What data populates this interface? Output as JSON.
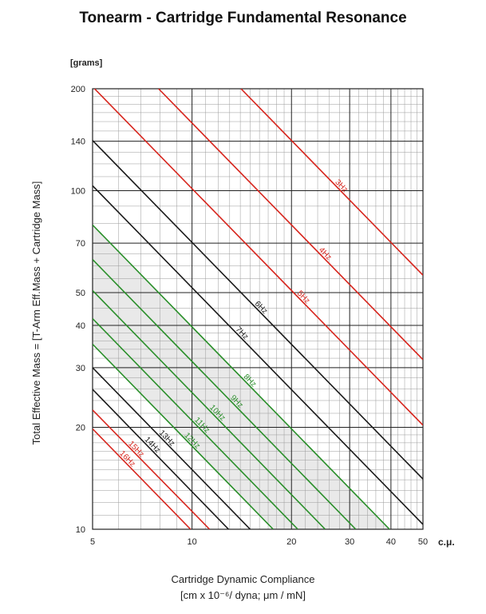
{
  "chart_data": {
    "type": "line",
    "title": "Tonearm - Cartridge Fundamental Resonance",
    "xlabel": "Cartridge Dynamic Compliance",
    "xlabel_units": "[cm x 10⁻⁶/ dyna; μm / mN]",
    "x_unit_label": "c.μ.",
    "ylabel": "Total Effective Mass = [T-Arm Eff.Mass + Cartridge Mass]",
    "y_unit_label": "[grams]",
    "x_scale": "log",
    "y_scale": "log",
    "xlim": [
      5,
      50
    ],
    "ylim": [
      10,
      200
    ],
    "x_ticks": [
      5,
      10,
      20,
      30,
      40,
      50
    ],
    "y_ticks": [
      10,
      20,
      30,
      40,
      50,
      70,
      100,
      140,
      200
    ],
    "grid": true,
    "recommended_range_shading": "light gray band between 8Hz and 12Hz lines",
    "series": [
      {
        "name": "3Hz",
        "color": "#d7261e",
        "points": [
          [
            14.07,
            200
          ],
          [
            50,
            56.3
          ]
        ]
      },
      {
        "name": "4Hz",
        "color": "#d7261e",
        "points": [
          [
            7.92,
            200
          ],
          [
            50,
            31.7
          ]
        ]
      },
      {
        "name": "5Hz",
        "color": "#d7261e",
        "points": [
          [
            5.07,
            200
          ],
          [
            50,
            20.3
          ]
        ]
      },
      {
        "name": "6Hz",
        "color": "#1a1a1a",
        "points": [
          [
            5,
            140.7
          ],
          [
            50,
            14.07
          ]
        ]
      },
      {
        "name": "7Hz",
        "color": "#1a1a1a",
        "points": [
          [
            5,
            103.4
          ],
          [
            50,
            10.34
          ]
        ]
      },
      {
        "name": "8Hz",
        "color": "#2a8f2a",
        "points": [
          [
            5,
            79.2
          ],
          [
            39.6,
            10
          ]
        ]
      },
      {
        "name": "9Hz",
        "color": "#2a8f2a",
        "points": [
          [
            5,
            62.6
          ],
          [
            31.3,
            10
          ]
        ]
      },
      {
        "name": "10Hz",
        "color": "#2a8f2a",
        "points": [
          [
            5,
            50.7
          ],
          [
            25.3,
            10
          ]
        ]
      },
      {
        "name": "11Hz",
        "color": "#2a8f2a",
        "points": [
          [
            5,
            41.9
          ],
          [
            20.9,
            10
          ]
        ]
      },
      {
        "name": "12Hz",
        "color": "#2a8f2a",
        "points": [
          [
            5,
            35.2
          ],
          [
            17.6,
            10
          ]
        ]
      },
      {
        "name": "13Hz",
        "color": "#1a1a1a",
        "points": [
          [
            5,
            30.0
          ],
          [
            15.0,
            10
          ]
        ]
      },
      {
        "name": "14Hz",
        "color": "#1a1a1a",
        "points": [
          [
            5,
            25.9
          ],
          [
            12.9,
            10
          ]
        ]
      },
      {
        "name": "15Hz",
        "color": "#d7261e",
        "points": [
          [
            5,
            22.5
          ],
          [
            11.3,
            10
          ]
        ]
      },
      {
        "name": "16Hz",
        "color": "#d7261e",
        "points": [
          [
            5,
            19.8
          ],
          [
            9.9,
            10
          ]
        ]
      }
    ],
    "label_positions_at_x": {
      "3Hz": 28,
      "4Hz": 25,
      "5Hz": 21.5,
      "6Hz": 16,
      "7Hz": 14,
      "8Hz": 14.8,
      "9Hz": 13.5,
      "10Hz": 11.8,
      "11Hz": 10.6,
      "12Hz": 9.9,
      "13Hz": 8.3,
      "14Hz": 7.5,
      "15Hz": 6.7,
      "16Hz": 6.3
    }
  }
}
